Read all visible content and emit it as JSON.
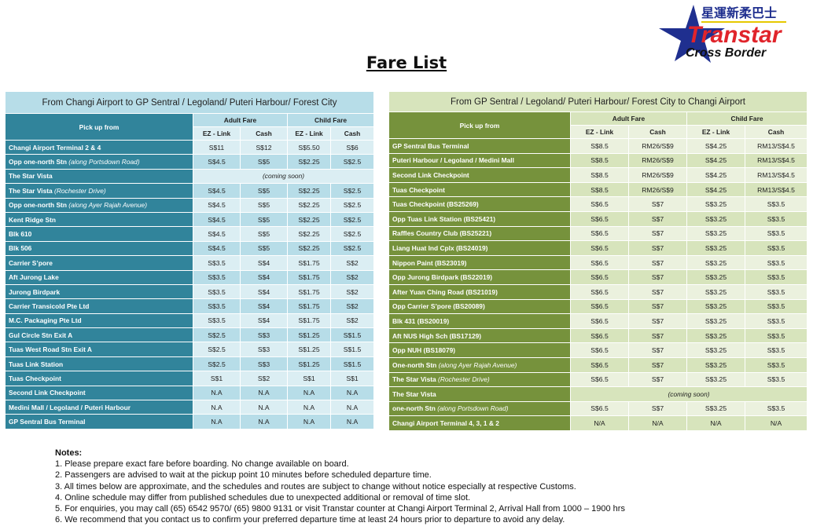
{
  "page_title": "Fare List",
  "logo": {
    "chinese": "星運新柔巴士",
    "brand": "Transtar",
    "sub": "Cross Border"
  },
  "headers": {
    "pickup": "Pick up from",
    "adult": "Adult Fare",
    "child": "Child Fare",
    "ez": "EZ - Link",
    "cash": "Cash"
  },
  "left_table": {
    "caption": "From Changi Airport to GP Sentral / Legoland/ Puteri Harbour/ Forest City",
    "rows": [
      {
        "name": "Changi Airport Terminal 2 & 4",
        "sub": "",
        "fares": [
          "S$11",
          "S$12",
          "S$5.50",
          "S$6"
        ]
      },
      {
        "name": "Opp one-north Stn ",
        "sub": "(along Portsdown Road)",
        "fares": [
          "S$4.5",
          "S$5",
          "S$2.25",
          "S$2.5"
        ]
      },
      {
        "name": "The Star Vista",
        "sub": "",
        "note": "(coming soon)"
      },
      {
        "name": "The Star Vista ",
        "sub": "(Rochester Drive)",
        "fares": [
          "S$4.5",
          "S$5",
          "S$2.25",
          "S$2.5"
        ]
      },
      {
        "name": "Opp one-north Stn ",
        "sub": "(along Ayer Rajah Avenue)",
        "fares": [
          "S$4.5",
          "S$5",
          "S$2.25",
          "S$2.5"
        ]
      },
      {
        "name": "Kent Ridge Stn",
        "sub": "",
        "fares": [
          "S$4.5",
          "S$5",
          "S$2.25",
          "S$2.5"
        ]
      },
      {
        "name": "Blk 610",
        "sub": "",
        "fares": [
          "S$4.5",
          "S$5",
          "S$2.25",
          "S$2.5"
        ]
      },
      {
        "name": "Blk 506",
        "sub": "",
        "fares": [
          "S$4.5",
          "S$5",
          "S$2.25",
          "S$2.5"
        ]
      },
      {
        "name": "Carrier S’pore",
        "sub": "",
        "fares": [
          "S$3.5",
          "S$4",
          "S$1.75",
          "S$2"
        ]
      },
      {
        "name": "Aft Jurong Lake",
        "sub": "",
        "fares": [
          "S$3.5",
          "S$4",
          "S$1.75",
          "S$2"
        ]
      },
      {
        "name": "Jurong Birdpark",
        "sub": "",
        "fares": [
          "S$3.5",
          "S$4",
          "S$1.75",
          "S$2"
        ]
      },
      {
        "name": "Carrier Transicold Pte Ltd",
        "sub": "",
        "fares": [
          "S$3.5",
          "S$4",
          "S$1.75",
          "S$2"
        ]
      },
      {
        "name": "M.C. Packaging Pte Ltd",
        "sub": "",
        "fares": [
          "S$3.5",
          "S$4",
          "S$1.75",
          "S$2"
        ]
      },
      {
        "name": "Gul Circle Stn Exit A",
        "sub": "",
        "fares": [
          "S$2.5",
          "S$3",
          "S$1.25",
          "S$1.5"
        ]
      },
      {
        "name": "Tuas West Road Stn Exit A",
        "sub": "",
        "fares": [
          "S$2.5",
          "S$3",
          "S$1.25",
          "S$1.5"
        ]
      },
      {
        "name": "Tuas Link Station",
        "sub": "",
        "fares": [
          "S$2.5",
          "S$3",
          "S$1.25",
          "S$1.5"
        ]
      },
      {
        "name": "Tuas Checkpoint",
        "sub": "",
        "fares": [
          "S$1",
          "S$2",
          "S$1",
          "S$1"
        ]
      },
      {
        "name": "Second Link Checkpoint",
        "sub": "",
        "fares": [
          "N.A",
          "N.A",
          "N.A",
          "N.A"
        ]
      },
      {
        "name": "Medini Mall /  Legoland /  Puteri Harbour",
        "sub": "",
        "fares": [
          "N.A",
          "N.A",
          "N.A",
          "N.A"
        ]
      },
      {
        "name": "GP Sentral Bus Terminal",
        "sub": "",
        "fares": [
          "N.A",
          "N.A",
          "N.A",
          "N.A"
        ]
      }
    ]
  },
  "right_table": {
    "caption": "From GP Sentral / Legoland/ Puteri Harbour/ Forest City to Changi Airport",
    "rows": [
      {
        "name": "GP Sentral Bus Terminal",
        "sub": "",
        "fares": [
          "S$8.5",
          "RM26/S$9",
          "S$4.25",
          "RM13/S$4.5"
        ]
      },
      {
        "name": "Puteri Harbour /  Legoland /  Medini Mall",
        "sub": "",
        "fares": [
          "S$8.5",
          "RM26/S$9",
          "S$4.25",
          "RM13/S$4.5"
        ]
      },
      {
        "name": "Second Link Checkpoint",
        "sub": "",
        "fares": [
          "S$8.5",
          "RM26/S$9",
          "S$4.25",
          "RM13/S$4.5"
        ]
      },
      {
        "name": "Tuas Checkpoint",
        "sub": "",
        "fares": [
          "S$8.5",
          "RM26/S$9",
          "S$4.25",
          "RM13/S$4.5"
        ]
      },
      {
        "name": "Tuas Checkpoint (BS25269)",
        "sub": "",
        "fares": [
          "S$6.5",
          "S$7",
          "S$3.25",
          "S$3.5"
        ]
      },
      {
        "name": "Opp Tuas Link Station (BS25421)",
        "sub": "",
        "fares": [
          "S$6.5",
          "S$7",
          "S$3.25",
          "S$3.5"
        ]
      },
      {
        "name": "Raffles Country Club (BS25221)",
        "sub": "",
        "fares": [
          "S$6.5",
          "S$7",
          "S$3.25",
          "S$3.5"
        ]
      },
      {
        "name": "Liang Huat Ind Cplx (BS24019)",
        "sub": "",
        "fares": [
          "S$6.5",
          "S$7",
          "S$3.25",
          "S$3.5"
        ]
      },
      {
        "name": "Nippon Paint (BS23019)",
        "sub": "",
        "fares": [
          "S$6.5",
          "S$7",
          "S$3.25",
          "S$3.5"
        ]
      },
      {
        "name": "Opp Jurong Birdpark (BS22019)",
        "sub": "",
        "fares": [
          "S$6.5",
          "S$7",
          "S$3.25",
          "S$3.5"
        ]
      },
      {
        "name": "After Yuan Ching Road (BS21019)",
        "sub": "",
        "fares": [
          "S$6.5",
          "S$7",
          "S$3.25",
          "S$3.5"
        ]
      },
      {
        "name": "Opp Carrier S’pore  (BS20089)",
        "sub": "",
        "fares": [
          "S$6.5",
          "S$7",
          "S$3.25",
          "S$3.5"
        ]
      },
      {
        "name": "Blk 431 (BS20019)",
        "sub": "",
        "fares": [
          "S$6.5",
          "S$7",
          "S$3.25",
          "S$3.5"
        ]
      },
      {
        "name": "Aft NUS High Sch (BS17129)",
        "sub": "",
        "fares": [
          "S$6.5",
          "S$7",
          "S$3.25",
          "S$3.5"
        ]
      },
      {
        "name": "Opp NUH (BS18079)",
        "sub": "",
        "fares": [
          "S$6.5",
          "S$7",
          "S$3.25",
          "S$3.5"
        ]
      },
      {
        "name": "One-north Stn ",
        "sub": "(along Ayer Rajah Avenue)",
        "fares": [
          "S$6.5",
          "S$7",
          "S$3.25",
          "S$3.5"
        ]
      },
      {
        "name": "The Star Vista ",
        "sub": "(Rochester Drive)",
        "fares": [
          "S$6.5",
          "S$7",
          "S$3.25",
          "S$3.5"
        ]
      },
      {
        "name": "The Star Vista",
        "sub": "",
        "note": "(coming soon)"
      },
      {
        "name": "one-north Stn ",
        "sub": "(along Portsdown Road)",
        "fares": [
          "S$6.5",
          "S$7",
          "S$3.25",
          "S$3.5"
        ]
      },
      {
        "name": "Changi Airport Terminal 4, 3, 1 & 2",
        "sub": "",
        "fares": [
          "N/A",
          "N/A",
          "N/A",
          "N/A"
        ]
      }
    ]
  },
  "notes": {
    "heading": "Notes:",
    "items": [
      "1. Please prepare exact fare before boarding. No change available on board.",
      "2. Passengers are advised to wait at the pickup point 10 minutes before scheduled departure time.",
      "3. All times below are approximate, and the schedules and routes are subject to change without notice especially at respective Customs.",
      "4. Online schedule may differ from published schedules due to unexpected additional or removal of time slot.",
      "5. For enquiries, you may call (65) 6542 9570/ (65) 9800 9131 or visit Transtar counter at Changi Airport Terminal 2, Arrival Hall from 1000 – 1900 hrs",
      "6. We recommend that you contact us to confirm your preferred departure time at least 24 hours prior to departure to avoid any delay."
    ]
  },
  "colors": {
    "left_dark": "#31849b",
    "left_light": "#b7dde8",
    "right_dark": "#76923c",
    "right_light": "#d7e4bc",
    "logo_blue": "#1f2f8f",
    "logo_red": "#e0242b"
  }
}
